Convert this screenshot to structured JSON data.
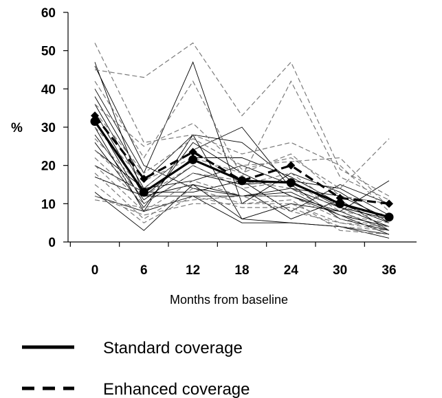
{
  "chart_data": {
    "type": "line",
    "title": "",
    "xlabel": "Months from baseline",
    "ylabel": "%",
    "x": [
      0,
      6,
      12,
      18,
      24,
      30,
      36
    ],
    "xticks": [
      "0",
      "6",
      "12",
      "18",
      "24",
      "30",
      "36"
    ],
    "yticks": [
      "0",
      "10",
      "20",
      "30",
      "40",
      "50",
      "60"
    ],
    "ylim": [
      0,
      60
    ],
    "grid": false,
    "legend": {
      "placement": "bottom",
      "entries": [
        {
          "label": "Standard coverage",
          "style": "solid"
        },
        {
          "label": "Enhanced coverage",
          "style": "dashed"
        }
      ]
    },
    "summary_series": [
      {
        "group": "standard",
        "marker": "circle",
        "values": [
          31.5,
          13,
          21.5,
          16,
          15.5,
          10,
          6.5
        ]
      },
      {
        "group": "enhanced",
        "marker": "diamond",
        "values": [
          33,
          16.5,
          23.5,
          16,
          20,
          11.5,
          10
        ]
      }
    ],
    "individual_series": [
      {
        "group": "standard",
        "values": [
          47,
          12,
          15,
          12,
          13,
          7,
          4
        ]
      },
      {
        "group": "standard",
        "values": [
          46,
          20,
          14,
          12,
          12,
          8,
          3
        ]
      },
      {
        "group": "standard",
        "values": [
          40,
          18,
          47,
          10,
          18,
          13,
          5
        ]
      },
      {
        "group": "standard",
        "values": [
          38,
          16,
          28,
          26,
          16,
          14,
          7
        ]
      },
      {
        "group": "standard",
        "values": [
          36,
          14,
          24,
          30,
          14,
          12,
          6
        ]
      },
      {
        "group": "standard",
        "values": [
          34,
          12,
          22,
          22,
          17,
          10,
          5
        ]
      },
      {
        "group": "standard",
        "values": [
          32,
          10,
          18,
          15,
          16,
          9,
          4
        ]
      },
      {
        "group": "standard",
        "values": [
          30,
          8,
          28,
          6,
          10,
          8,
          16
        ]
      },
      {
        "group": "standard",
        "values": [
          28,
          11,
          20,
          14,
          6,
          11,
          3
        ]
      },
      {
        "group": "standard",
        "values": [
          26,
          9,
          26,
          18,
          12,
          7,
          2
        ]
      },
      {
        "group": "standard",
        "values": [
          24,
          14,
          16,
          20,
          15,
          6,
          3
        ]
      },
      {
        "group": "standard",
        "values": [
          20,
          13,
          13,
          16,
          8,
          15,
          10
        ]
      },
      {
        "group": "standard",
        "values": [
          17,
          12,
          12,
          12,
          14,
          9,
          6
        ]
      },
      {
        "group": "standard",
        "values": [
          13,
          3,
          15,
          6,
          5,
          4,
          1
        ]
      },
      {
        "group": "standard",
        "values": [
          12,
          8,
          12,
          5,
          5,
          4,
          2
        ]
      },
      {
        "group": "enhanced",
        "values": [
          52,
          26,
          28,
          23,
          26,
          20,
          8
        ]
      },
      {
        "group": "enhanced",
        "values": [
          45,
          43,
          52,
          33,
          47,
          19,
          12
        ]
      },
      {
        "group": "enhanced",
        "values": [
          42,
          22,
          42,
          17,
          42,
          17,
          11
        ]
      },
      {
        "group": "enhanced",
        "values": [
          36,
          25,
          31,
          19,
          22,
          14,
          27
        ]
      },
      {
        "group": "enhanced",
        "values": [
          34,
          18,
          27,
          20,
          21,
          22,
          9
        ]
      },
      {
        "group": "enhanced",
        "values": [
          30,
          16,
          22,
          18,
          23,
          12,
          10
        ]
      },
      {
        "group": "enhanced",
        "values": [
          27,
          14,
          24,
          15,
          18,
          9,
          7
        ]
      },
      {
        "group": "enhanced",
        "values": [
          24,
          12,
          20,
          14,
          16,
          8,
          6
        ]
      },
      {
        "group": "enhanced",
        "values": [
          22,
          10,
          18,
          16,
          14,
          7,
          5
        ]
      },
      {
        "group": "enhanced",
        "values": [
          20,
          8,
          16,
          12,
          12,
          6,
          4
        ]
      },
      {
        "group": "enhanced",
        "values": [
          18,
          6,
          14,
          10,
          10,
          5,
          3
        ]
      },
      {
        "group": "enhanced",
        "values": [
          15,
          5,
          12,
          9,
          9,
          4,
          3
        ]
      },
      {
        "group": "enhanced",
        "values": [
          12,
          7,
          10,
          10,
          11,
          3,
          2
        ]
      },
      {
        "group": "enhanced",
        "values": [
          11,
          9,
          11,
          12,
          8,
          5,
          4
        ]
      }
    ]
  }
}
